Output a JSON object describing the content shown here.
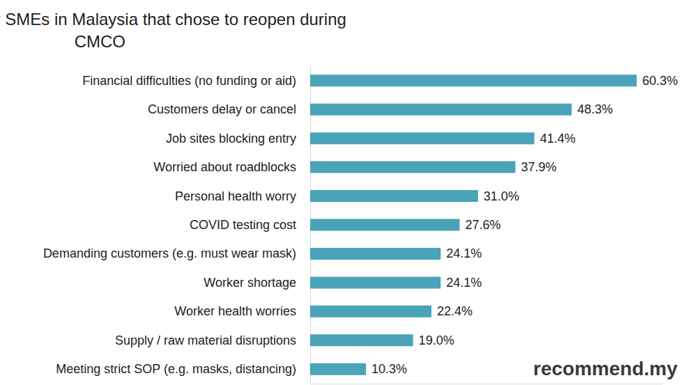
{
  "chart_data": {
    "type": "bar",
    "orientation": "horizontal",
    "title": "Challenges faced by SMEs in Malaysia that chose to reopen during CMCO",
    "categories": [
      "Financial difficulties (no funding or aid)",
      "Customers delay or cancel",
      "Job sites blocking entry",
      "Worried about roadblocks",
      "Personal health worry",
      "COVID testing cost",
      "Demanding customers (e.g. must wear mask)",
      "Worker shortage",
      "Worker health worries",
      "Supply / raw material disruptions",
      "Meeting strict SOP (e.g. masks, distancing)"
    ],
    "values": [
      60.3,
      48.3,
      41.4,
      37.9,
      31.0,
      27.6,
      24.1,
      24.1,
      22.4,
      19.0,
      10.3
    ],
    "value_labels": [
      "60.3%",
      "48.3%",
      "41.4%",
      "37.9%",
      "31.0%",
      "27.6%",
      "24.1%",
      "24.1%",
      "22.4%",
      "19.0%",
      "10.3%"
    ],
    "color": "#4aa3b8",
    "xlim": [
      0,
      65
    ],
    "grid": false,
    "data_labels": true,
    "tick_labels": "y",
    "annotations": [
      "recommend.my"
    ]
  }
}
